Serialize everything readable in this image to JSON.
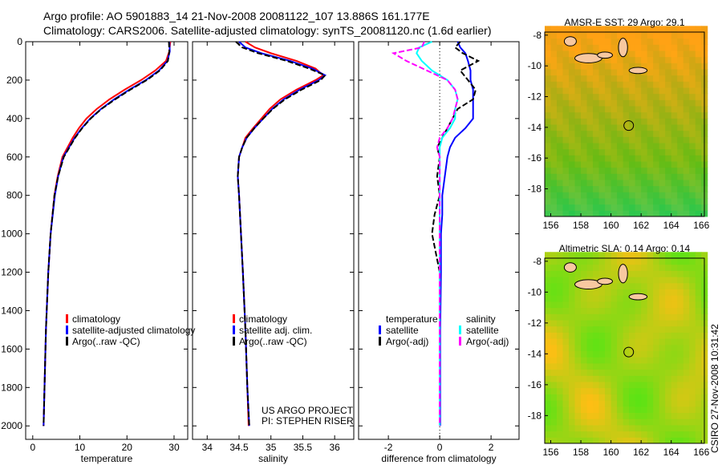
{
  "title_line1": "Argo profile: AO 5901883_14 21-Nov-2008 20081122_107 13.886S 161.177E",
  "title_line2": "Climatology: CARS2006. Satellite-adjusted climatology: synTS_20081120.nc (1.6d earlier)",
  "footer_vertical": "CSIRO 27-Nov-2008 10:31:42",
  "colors": {
    "climatology": "#ff0000",
    "satellite": "#0000ff",
    "argo": "#000000",
    "sal_satellite": "#00ffff",
    "sal_argo": "#ff00ff"
  },
  "chart_data": [
    {
      "type": "line",
      "name": "temperature",
      "xlabel": "temperature",
      "ylabel": "depth",
      "xlim": [
        -1.5,
        32.9
      ],
      "ylim": [
        0,
        2070
      ],
      "xticks": [
        "0",
        "10",
        "20",
        "30"
      ],
      "xtickvals": [
        0,
        10,
        20,
        30
      ],
      "yticks": [
        "0",
        "200",
        "400",
        "600",
        "800",
        "1000",
        "1200",
        "1400",
        "1600",
        "1800",
        "2000"
      ],
      "legend": [
        "climatology",
        "satellite-adjusted climatology",
        "Argo(..raw -QC)"
      ],
      "depth": [
        0,
        50,
        100,
        150,
        200,
        250,
        300,
        350,
        400,
        450,
        500,
        600,
        700,
        800,
        1000,
        1200,
        1500,
        1800,
        2000
      ],
      "series": [
        {
          "name": "climatology",
          "color": "#ff0000",
          "values": [
            29.2,
            29.0,
            28.3,
            26,
            23,
            19.5,
            16.3,
            13.6,
            11.4,
            9.8,
            8.5,
            6.3,
            5.3,
            4.6,
            3.8,
            3.3,
            2.8,
            2.5,
            2.3
          ]
        },
        {
          "name": "satellite-adjusted climatology",
          "color": "#0000ff",
          "values": [
            29.0,
            29.1,
            28.6,
            26.8,
            24,
            20.5,
            17.3,
            14.5,
            12.2,
            10.4,
            8.9,
            6.5,
            5.4,
            4.7,
            3.8,
            3.3,
            2.8,
            2.5,
            2.3
          ]
        },
        {
          "name": "Argo(..raw -QC)",
          "color": "#000000",
          "values": [
            28.9,
            29.0,
            28.7,
            27,
            24.2,
            20.7,
            17.5,
            14.6,
            12.3,
            10.5,
            9.0,
            6.6,
            5.4,
            4.6,
            3.8,
            3.3,
            2.8,
            2.5,
            2.3
          ]
        }
      ]
    },
    {
      "type": "line",
      "name": "salinity",
      "xlabel": "salinity",
      "xlim": [
        33.77,
        36.3
      ],
      "ylim": [
        0,
        2070
      ],
      "xticks": [
        "34",
        "34.5",
        "35",
        "35.5",
        "36"
      ],
      "xtickvals": [
        34,
        34.5,
        35,
        35.5,
        36
      ],
      "legend": [
        "climatology",
        "satellite adj. clim.",
        "Argo(..raw -QC)"
      ],
      "annotation": [
        "US ARGO PROJECT",
        "PI: STEPHEN RISER"
      ],
      "depth": [
        0,
        30,
        60,
        100,
        140,
        175,
        200,
        250,
        300,
        350,
        400,
        450,
        500,
        550,
        600,
        700,
        800,
        1000,
        1200,
        1500,
        1800,
        2000
      ],
      "series": [
        {
          "name": "climatology",
          "color": "#ff0000",
          "values": [
            34.6,
            34.75,
            35.0,
            35.4,
            35.7,
            35.82,
            35.7,
            35.4,
            35.15,
            34.98,
            34.85,
            34.72,
            34.6,
            34.55,
            34.5,
            34.48,
            34.5,
            34.53,
            34.56,
            34.6,
            34.63,
            34.65
          ]
        },
        {
          "name": "satellite adj. clim.",
          "color": "#0000ff",
          "values": [
            34.5,
            34.6,
            34.85,
            35.3,
            35.65,
            35.85,
            35.75,
            35.45,
            35.2,
            35.02,
            34.88,
            34.74,
            34.62,
            34.55,
            34.5,
            34.48,
            34.5,
            34.53,
            34.56,
            34.6,
            34.63,
            34.66
          ]
        },
        {
          "name": "Argo(..raw -QC)",
          "color": "#000000",
          "values": [
            34.45,
            34.55,
            34.8,
            35.25,
            35.6,
            35.85,
            35.78,
            35.48,
            35.22,
            35.03,
            34.88,
            34.74,
            34.62,
            34.55,
            34.5,
            34.48,
            34.5,
            34.53,
            34.56,
            34.6,
            34.63,
            34.66
          ]
        }
      ]
    },
    {
      "type": "line",
      "name": "difference",
      "xlabel": "difference from climatology",
      "xlim": [
        -3.16,
        3.09
      ],
      "ylim": [
        0,
        2070
      ],
      "xticks": [
        "-2",
        "0",
        "2"
      ],
      "xtickvals": [
        -2,
        0,
        2
      ],
      "legend_headers": [
        "temperature",
        "salinity"
      ],
      "legend": [
        "satellite",
        "Argo(-adj)",
        "satellite",
        "Argo(-adj)"
      ],
      "depth": [
        0,
        30,
        60,
        100,
        150,
        200,
        250,
        300,
        350,
        400,
        450,
        500,
        550,
        600,
        700,
        800,
        900,
        1000,
        1200,
        1500,
        2000
      ],
      "series": [
        {
          "name": "temperature satellite",
          "color": "#0000ff",
          "values": [
            0.7,
            0.8,
            1.0,
            1.1,
            1.2,
            1.2,
            1.3,
            1.3,
            1.3,
            1.3,
            1.0,
            0.6,
            0.4,
            0.3,
            0.2,
            0.1,
            0.1,
            0.05,
            0.05,
            0.02,
            0.02
          ]
        },
        {
          "name": "temperature Argo(-adj)",
          "color": "#000000",
          "values": [
            0.8,
            0.6,
            0.9,
            1.5,
            0.8,
            1.1,
            1.4,
            1.3,
            0.7,
            0.5,
            0.3,
            0.1,
            -0.1,
            0.0,
            -0.1,
            0.0,
            -0.2,
            -0.3,
            0.0,
            0.0,
            0.0
          ]
        },
        {
          "name": "salinity satellite",
          "color": "#00ffff",
          "values": [
            -0.3,
            -0.8,
            -0.9,
            -0.7,
            -0.3,
            0.3,
            0.6,
            0.7,
            0.6,
            0.6,
            0.4,
            0.1,
            0.0,
            0.0,
            0.0,
            0.0,
            0.0,
            0.0,
            0.0,
            0.0,
            0.0
          ]
        },
        {
          "name": "salinity Argo(-adj)",
          "color": "#ff00ff",
          "values": [
            -0.6,
            -0.7,
            -1.8,
            -1.3,
            -0.5,
            0.3,
            0.6,
            0.7,
            0.6,
            0.5,
            0.3,
            0.0,
            -0.1,
            0.0,
            0.0,
            0.0,
            0.0,
            0.0,
            0.0,
            0.0,
            0.0
          ]
        }
      ]
    },
    {
      "type": "heatmap",
      "name": "sst_map",
      "title": "AMSR-E SST: 29 Argo: 29.1",
      "xlim": [
        155.6,
        166.2
      ],
      "ylim": [
        -19.8,
        -7.8
      ],
      "xticks": [
        "156",
        "158",
        "160",
        "162",
        "164",
        "166"
      ],
      "yticks": [
        "-8",
        "-10",
        "-12",
        "-14",
        "-16",
        "-18"
      ],
      "marker": {
        "lon": 161.177,
        "lat": -13.886
      }
    },
    {
      "type": "heatmap",
      "name": "sla_map",
      "title": "Altimetric SLA: 0.14 Argo: 0.14",
      "xlim": [
        155.6,
        166.2
      ],
      "ylim": [
        -19.8,
        -7.8
      ],
      "xticks": [
        "156",
        "158",
        "160",
        "162",
        "164",
        "166"
      ],
      "yticks": [
        "-8",
        "-10",
        "-12",
        "-14",
        "-16",
        "-18"
      ],
      "marker": {
        "lon": 161.177,
        "lat": -13.886
      }
    }
  ]
}
